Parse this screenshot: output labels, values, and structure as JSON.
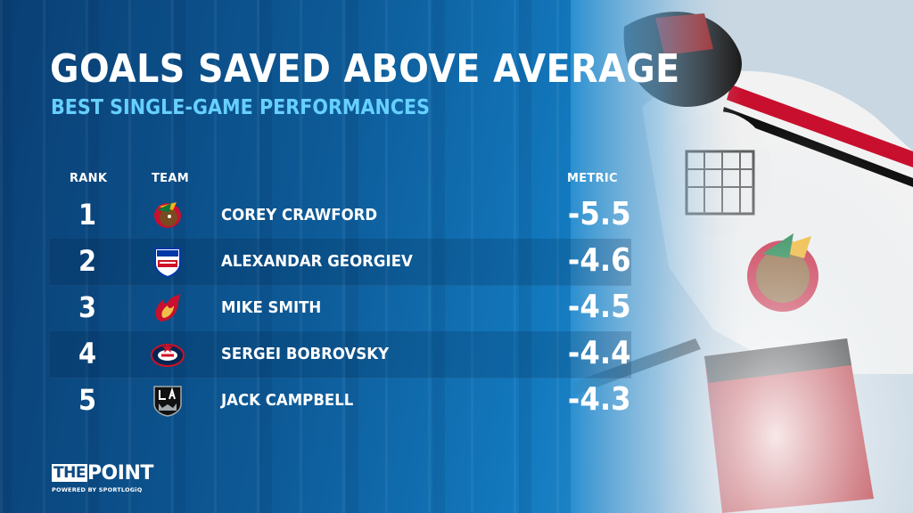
{
  "header": {
    "title": "GOALS SAVED ABOVE AVERAGE",
    "subtitle": "BEST SINGLE-GAME PERFORMANCES"
  },
  "columns": {
    "rank": "RANK",
    "team": "TEAM",
    "metric": "METRIC"
  },
  "rows": [
    {
      "rank": "1",
      "team_icon": "blackhawks-logo-icon",
      "player": "COREY CRAWFORD",
      "metric": "-5.5"
    },
    {
      "rank": "2",
      "team_icon": "rangers-logo-icon",
      "player": "ALEXANDAR GEORGIEV",
      "metric": "-4.6"
    },
    {
      "rank": "3",
      "team_icon": "flames-logo-icon",
      "player": "MIKE SMITH",
      "metric": "-4.5"
    },
    {
      "rank": "4",
      "team_icon": "blue-jackets-logo-icon",
      "player": "SERGEI BOBROVSKY",
      "metric": "-4.4"
    },
    {
      "rank": "5",
      "team_icon": "kings-logo-icon",
      "player": "JACK CAMPBELL",
      "metric": "-4.3"
    }
  ],
  "brand": {
    "the": "THE",
    "point": "POINT",
    "powered_by": "POWERED BY SPORTLOGiQ"
  },
  "colors": {
    "background_dark": "#0a3f74",
    "background_mid": "#1379be",
    "subtitle_accent": "#66d0ff",
    "text": "#ffffff"
  }
}
